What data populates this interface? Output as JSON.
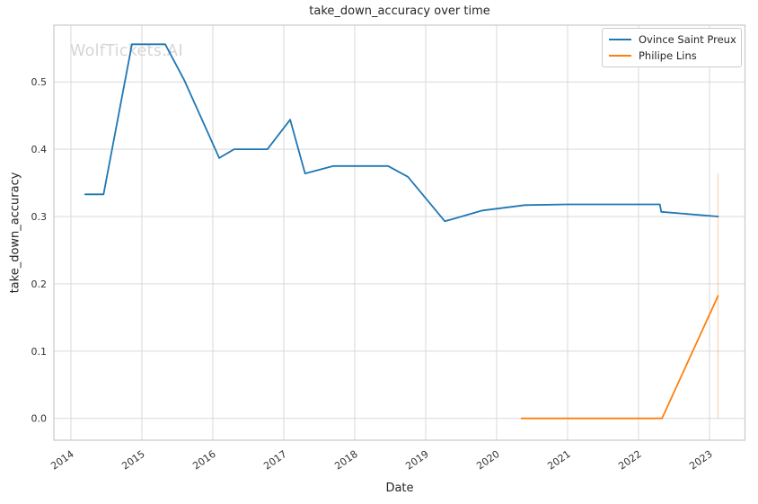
{
  "watermark": "WolfTickets.AI",
  "chart_data": {
    "type": "line",
    "title": "take_down_accuracy over time",
    "xlabel": "Date",
    "ylabel": "take_down_accuracy",
    "grid": true,
    "legend_position": "upper right",
    "x_tick_labels": [
      "2014",
      "2015",
      "2016",
      "2017",
      "2018",
      "2019",
      "2020",
      "2021",
      "2022",
      "2023"
    ],
    "x_tick_values": [
      2014,
      2015,
      2016,
      2017,
      2018,
      2019,
      2020,
      2021,
      2022,
      2023
    ],
    "y_tick_labels": [
      "0.0",
      "0.1",
      "0.2",
      "0.3",
      "0.4",
      "0.5"
    ],
    "y_tick_values": [
      0.0,
      0.1,
      0.2,
      0.3,
      0.4,
      0.5
    ],
    "x_range": [
      2013.76,
      2023.5
    ],
    "y_range": [
      -0.0324,
      0.5844
    ],
    "series": [
      {
        "name": "Ovince Saint Preux",
        "color": "#1f77b4",
        "points": [
          [
            2014.2,
            0.333
          ],
          [
            2014.46,
            0.333
          ],
          [
            2014.86,
            0.556
          ],
          [
            2015.33,
            0.556
          ],
          [
            2015.6,
            0.502
          ],
          [
            2016.09,
            0.387
          ],
          [
            2016.3,
            0.4
          ],
          [
            2016.77,
            0.4
          ],
          [
            2017.09,
            0.444
          ],
          [
            2017.3,
            0.364
          ],
          [
            2017.7,
            0.375
          ],
          [
            2018.47,
            0.375
          ],
          [
            2018.75,
            0.359
          ],
          [
            2019.27,
            0.293
          ],
          [
            2019.8,
            0.309
          ],
          [
            2020.4,
            0.317
          ],
          [
            2021.0,
            0.318
          ],
          [
            2022.3,
            0.318
          ],
          [
            2022.32,
            0.307
          ],
          [
            2023.12,
            0.3
          ]
        ]
      },
      {
        "name": "Philipe Lins",
        "color": "#ff7f0e",
        "points": [
          [
            2020.35,
            0.0
          ],
          [
            2022.33,
            0.0
          ],
          [
            2023.12,
            0.182
          ]
        ]
      }
    ],
    "annotations": [
      {
        "kind": "vertical-range-line",
        "x": 2023.12,
        "y_from": 0.0,
        "y_to": 0.364,
        "color": "rgba(255,127,14,0.32)"
      }
    ]
  }
}
